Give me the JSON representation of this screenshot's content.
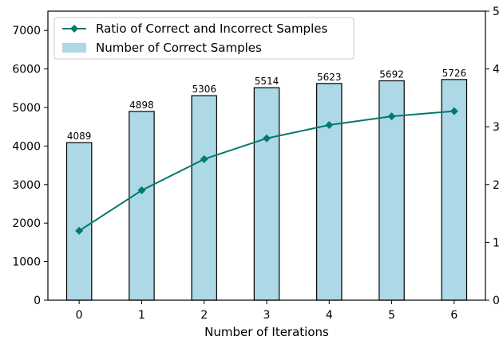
{
  "chart_data": {
    "type": "bar",
    "xlabel": "Number of Iterations",
    "categories": [
      "0",
      "1",
      "2",
      "3",
      "4",
      "5",
      "6"
    ],
    "series": [
      {
        "name": "Number of Correct Samples",
        "type": "bar",
        "axis": "left",
        "color": "#add8e6",
        "values": [
          4089,
          4898,
          5306,
          5514,
          5623,
          5692,
          5726
        ],
        "labels": [
          "4089",
          "4898",
          "5306",
          "5514",
          "5623",
          "5692",
          "5726"
        ]
      },
      {
        "name": "Ratio of Correct and Incorrect Samples",
        "type": "line",
        "axis": "right",
        "marker": "diamond",
        "color": "#007a6e",
        "values": [
          1.2,
          1.9,
          2.44,
          2.8,
          3.03,
          3.18,
          3.27
        ]
      }
    ],
    "y_left": {
      "ylim": [
        0,
        7500
      ],
      "ticks": [
        0,
        1000,
        2000,
        3000,
        4000,
        5000,
        6000,
        7000
      ],
      "tick_labels": [
        "0",
        "1000",
        "2000",
        "3000",
        "4000",
        "5000",
        "6000",
        "7000"
      ]
    },
    "y_right": {
      "ylim": [
        0,
        5
      ],
      "ticks": [
        0,
        1,
        2,
        3,
        4,
        5
      ],
      "tick_labels": [
        "0",
        "1",
        "2",
        "3",
        "4",
        "5"
      ]
    },
    "grid": false,
    "legend_position": "top-left"
  }
}
